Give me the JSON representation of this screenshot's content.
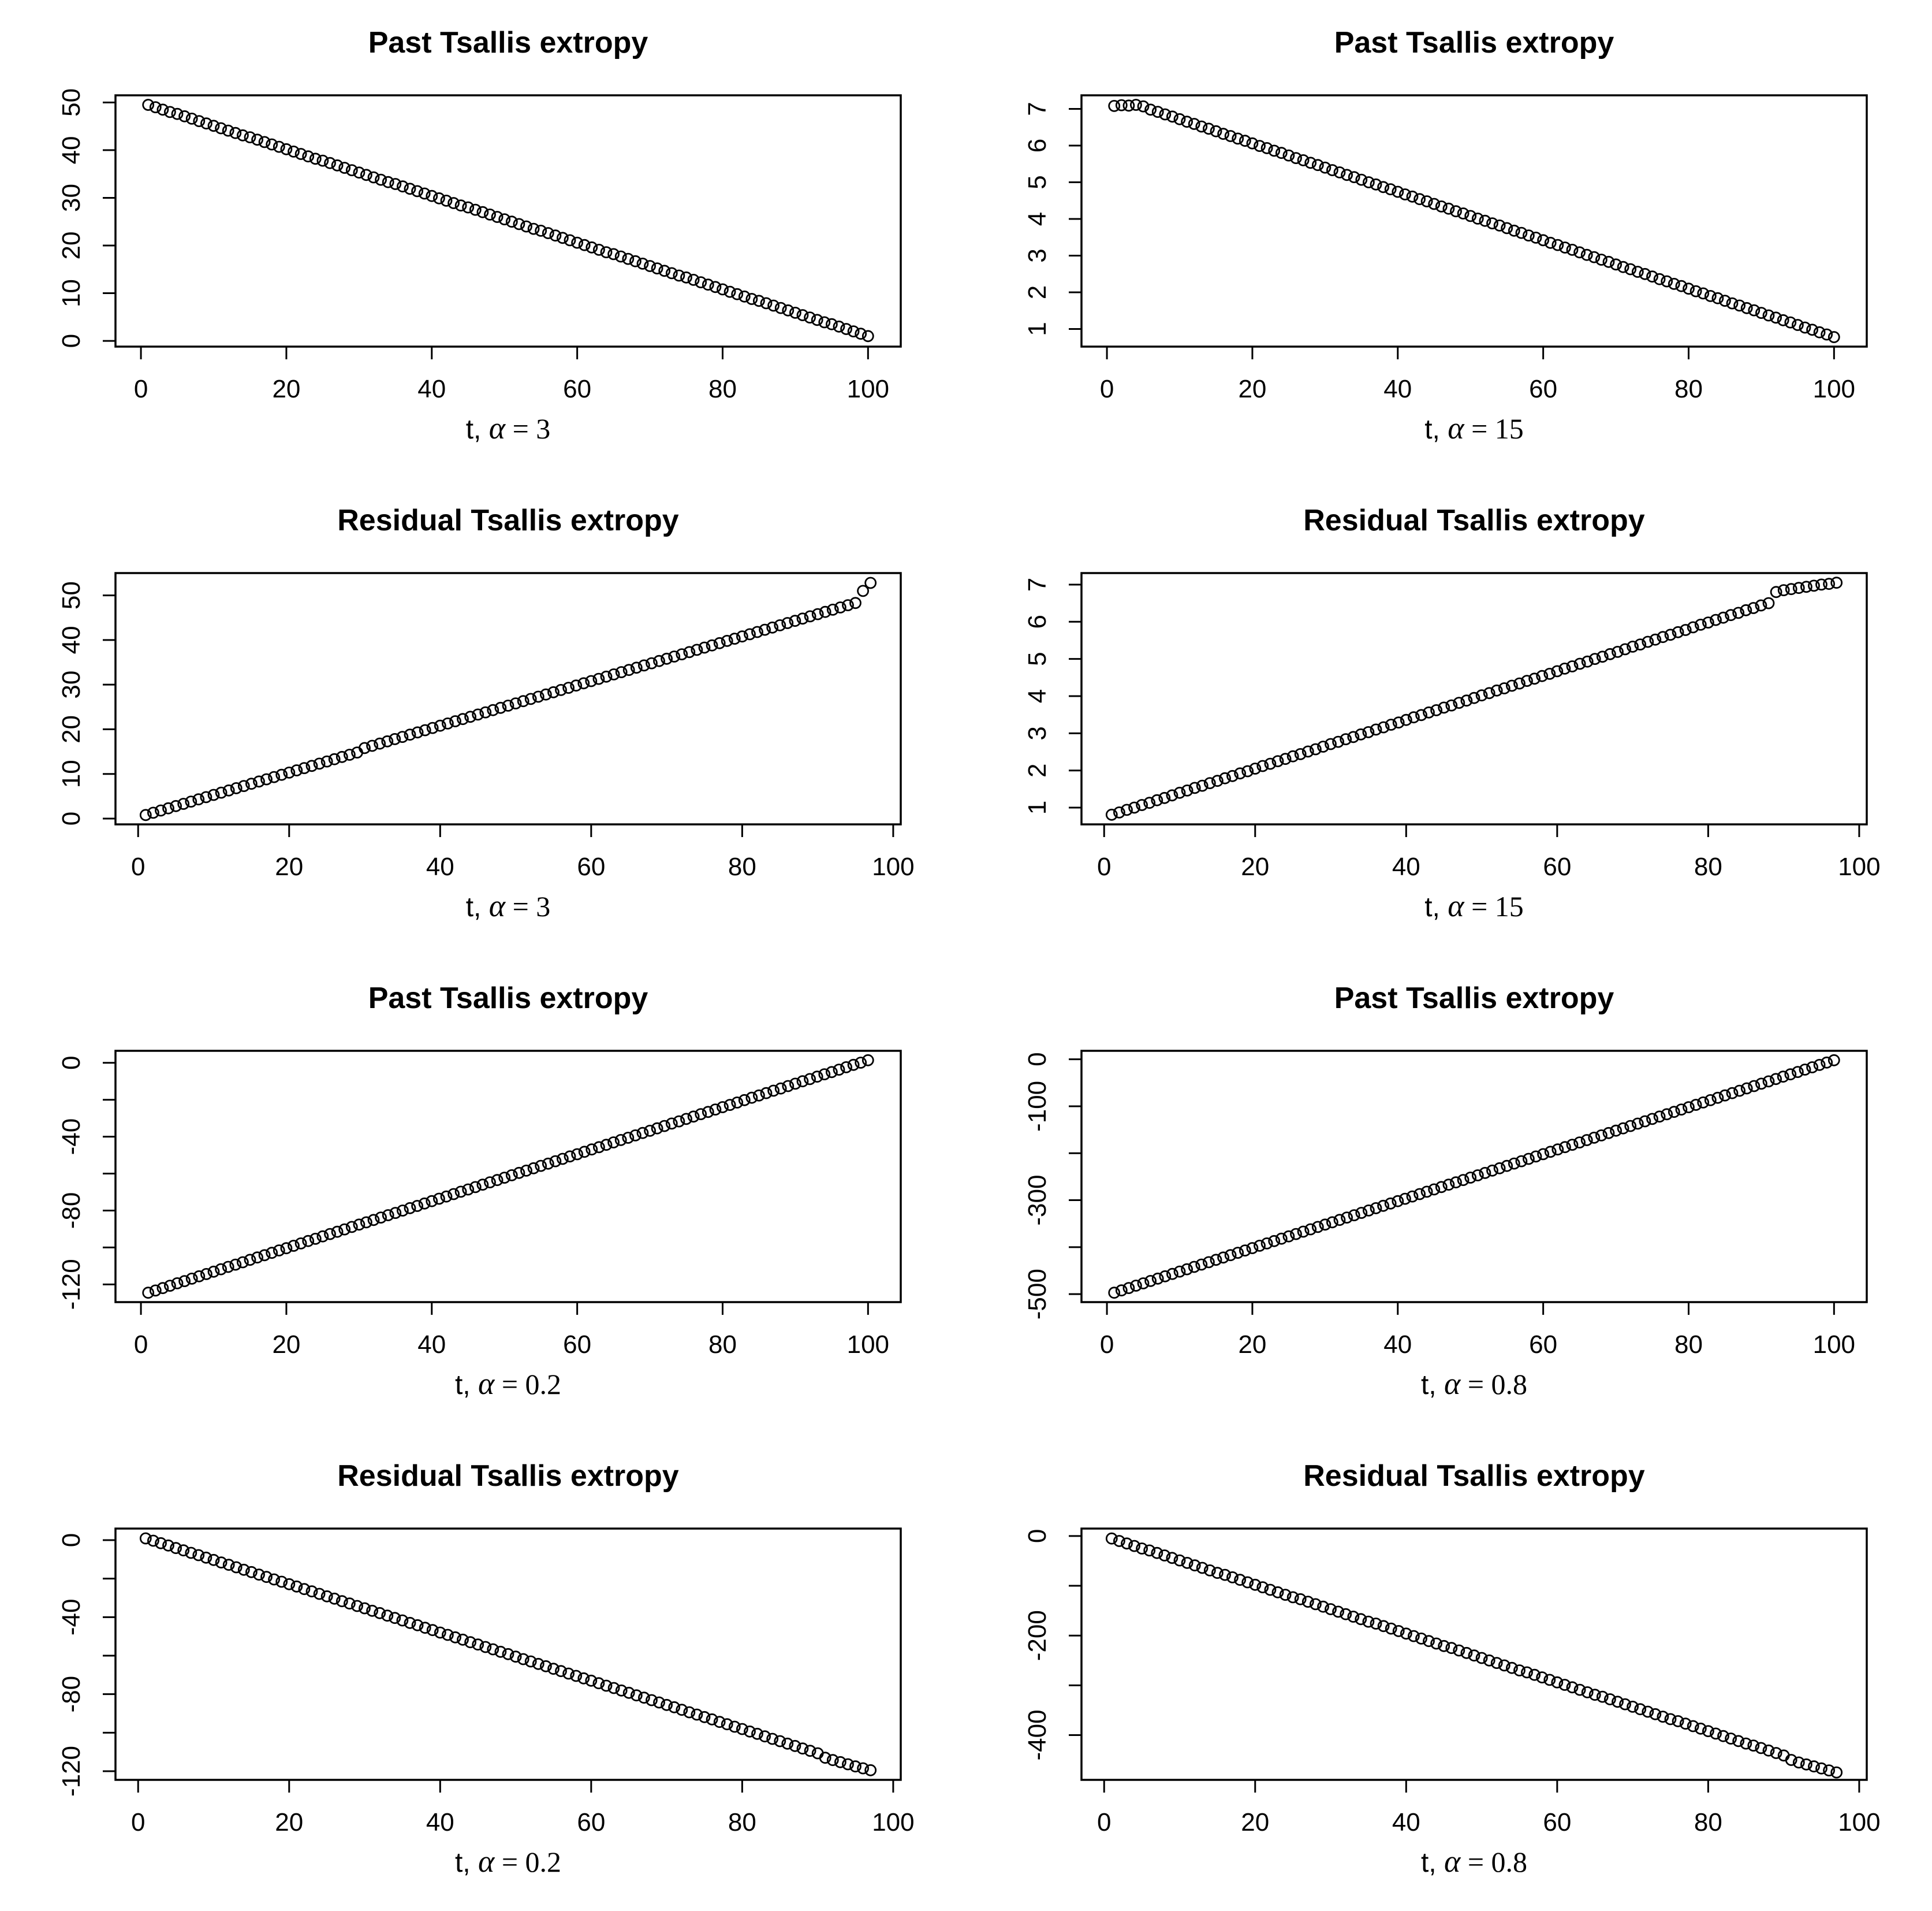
{
  "page": {
    "background": "#ffffff",
    "text_color": "#000000",
    "accent": "#000000"
  },
  "chart_data": [
    {
      "type": "scatter",
      "title": "Past Tsallis extropy",
      "xlabel": "t, α = 3",
      "xlabel_parts": {
        "prefix": "t, ",
        "alpha": "α",
        "suffix": " = 3"
      },
      "xlim": [
        -3.5,
        104.5
      ],
      "ylim": [
        -1.2,
        51.5
      ],
      "x_ticks": [
        0,
        20,
        40,
        60,
        80,
        100
      ],
      "y_tick_values": [
        0,
        10,
        20,
        30,
        40,
        50
      ],
      "y_tick_labels": [
        "0",
        "10",
        "20",
        "30",
        "40",
        "50"
      ],
      "grid": false,
      "legend": null,
      "x_start": 1,
      "x_step": 1,
      "y": [
        49.5,
        49.0,
        48.5,
        48.0,
        47.6,
        47.1,
        46.6,
        46.1,
        45.6,
        45.1,
        44.6,
        44.1,
        43.6,
        43.1,
        42.7,
        42.2,
        41.7,
        41.2,
        40.7,
        40.2,
        39.7,
        39.2,
        38.7,
        38.2,
        37.8,
        37.3,
        36.8,
        36.3,
        35.8,
        35.3,
        34.8,
        34.3,
        33.8,
        33.3,
        32.9,
        32.4,
        31.9,
        31.4,
        30.9,
        30.4,
        29.9,
        29.4,
        28.9,
        28.4,
        28.0,
        27.5,
        27.0,
        26.5,
        26.0,
        25.5,
        25.0,
        24.5,
        24.0,
        23.5,
        23.1,
        22.6,
        22.1,
        21.6,
        21.1,
        20.6,
        20.1,
        19.6,
        19.1,
        18.6,
        18.2,
        17.7,
        17.2,
        16.7,
        16.2,
        15.7,
        15.2,
        14.7,
        14.2,
        13.7,
        13.3,
        12.8,
        12.3,
        11.8,
        11.3,
        10.8,
        10.3,
        9.8,
        9.3,
        8.8,
        8.4,
        7.9,
        7.4,
        6.9,
        6.4,
        5.9,
        5.4,
        4.9,
        4.4,
        3.9,
        3.5,
        3.0,
        2.5,
        2.0,
        1.5,
        1.0
      ]
    },
    {
      "type": "scatter",
      "title": "Past Tsallis extropy",
      "xlabel": "t, α = 15",
      "xlabel_parts": {
        "prefix": "t, ",
        "alpha": "α",
        "suffix": " = 15"
      },
      "xlim": [
        -3.5,
        104.5
      ],
      "ylim": [
        0.52,
        7.37
      ],
      "x_ticks": [
        0,
        20,
        40,
        60,
        80,
        100
      ],
      "y_tick_values": [
        1,
        2,
        3,
        4,
        5,
        6,
        7
      ],
      "y_tick_labels": [
        "1",
        "2",
        "3",
        "4",
        "5",
        "6",
        "7"
      ],
      "grid": false,
      "legend": null,
      "x_start": 1,
      "x_step": 1,
      "y": [
        7.08,
        7.1,
        7.09,
        7.11,
        7.07,
        6.98,
        6.92,
        6.85,
        6.79,
        6.72,
        6.65,
        6.59,
        6.52,
        6.46,
        6.39,
        6.32,
        6.26,
        6.19,
        6.13,
        6.06,
        5.99,
        5.93,
        5.86,
        5.8,
        5.73,
        5.66,
        5.6,
        5.53,
        5.47,
        5.4,
        5.33,
        5.27,
        5.2,
        5.14,
        5.07,
        5.0,
        4.94,
        4.87,
        4.81,
        4.74,
        4.67,
        4.61,
        4.54,
        4.48,
        4.41,
        4.34,
        4.28,
        4.21,
        4.15,
        4.08,
        4.01,
        3.95,
        3.88,
        3.82,
        3.75,
        3.68,
        3.62,
        3.55,
        3.49,
        3.42,
        3.35,
        3.29,
        3.22,
        3.16,
        3.09,
        3.02,
        2.96,
        2.89,
        2.83,
        2.76,
        2.69,
        2.63,
        2.56,
        2.5,
        2.43,
        2.36,
        2.3,
        2.23,
        2.17,
        2.1,
        2.03,
        1.97,
        1.9,
        1.84,
        1.77,
        1.7,
        1.64,
        1.57,
        1.51,
        1.44,
        1.37,
        1.31,
        1.24,
        1.18,
        1.11,
        1.04,
        0.98,
        0.91,
        0.85,
        0.78
      ]
    },
    {
      "type": "scatter",
      "title": "Residual Tsallis extropy",
      "xlabel": "t, α = 3",
      "xlabel_parts": {
        "prefix": "t, ",
        "alpha": "α",
        "suffix": " = 3"
      },
      "xlim": [
        -3,
        101
      ],
      "ylim": [
        -1.3,
        55.0
      ],
      "x_ticks": [
        0,
        20,
        40,
        60,
        80,
        100
      ],
      "y_tick_values": [
        0,
        10,
        20,
        30,
        40,
        50
      ],
      "y_tick_labels": [
        "0",
        "10",
        "20",
        "30",
        "40",
        "50"
      ],
      "grid": false,
      "legend": null,
      "x_start": 1,
      "x_step": 1,
      "y": [
        0.8,
        1.3,
        1.8,
        2.3,
        2.8,
        3.3,
        3.8,
        4.3,
        4.8,
        5.3,
        5.8,
        6.3,
        6.8,
        7.3,
        7.8,
        8.3,
        8.8,
        9.3,
        9.8,
        10.3,
        10.8,
        11.3,
        11.8,
        12.3,
        12.8,
        13.3,
        13.8,
        14.3,
        14.8,
        15.8,
        16.3,
        16.8,
        17.3,
        17.8,
        18.3,
        18.8,
        19.3,
        19.8,
        20.3,
        20.8,
        21.3,
        21.8,
        22.3,
        22.8,
        23.3,
        23.8,
        24.3,
        24.8,
        25.3,
        25.8,
        26.3,
        26.8,
        27.3,
        27.8,
        28.3,
        28.8,
        29.3,
        29.8,
        30.3,
        30.8,
        31.3,
        31.8,
        32.3,
        32.8,
        33.3,
        33.8,
        34.3,
        34.8,
        35.3,
        35.8,
        36.3,
        36.8,
        37.3,
        37.8,
        38.3,
        38.8,
        39.3,
        39.8,
        40.3,
        40.8,
        41.3,
        41.8,
        42.3,
        42.8,
        43.3,
        43.8,
        44.3,
        44.8,
        45.3,
        45.8,
        46.3,
        46.8,
        47.3,
        47.8,
        48.3,
        51.0,
        52.8
      ]
    },
    {
      "type": "scatter",
      "title": "Residual Tsallis extropy",
      "xlabel": "t, α = 15",
      "xlabel_parts": {
        "prefix": "t, ",
        "alpha": "α",
        "suffix": " = 15"
      },
      "xlim": [
        -3,
        101
      ],
      "ylim": [
        0.55,
        7.31
      ],
      "x_ticks": [
        0,
        20,
        40,
        60,
        80,
        100
      ],
      "y_tick_values": [
        1,
        2,
        3,
        4,
        5,
        6,
        7
      ],
      "y_tick_labels": [
        "1",
        "2",
        "3",
        "4",
        "5",
        "6",
        "7"
      ],
      "grid": false,
      "legend": null,
      "x_start": 1,
      "x_step": 1,
      "y": [
        0.81,
        0.87,
        0.94,
        1.0,
        1.07,
        1.13,
        1.2,
        1.26,
        1.33,
        1.4,
        1.46,
        1.53,
        1.59,
        1.66,
        1.72,
        1.79,
        1.85,
        1.92,
        1.98,
        2.05,
        2.12,
        2.18,
        2.25,
        2.31,
        2.38,
        2.44,
        2.51,
        2.57,
        2.64,
        2.71,
        2.77,
        2.84,
        2.9,
        2.97,
        3.03,
        3.1,
        3.16,
        3.23,
        3.29,
        3.36,
        3.43,
        3.49,
        3.56,
        3.62,
        3.69,
        3.75,
        3.82,
        3.88,
        3.95,
        4.02,
        4.08,
        4.15,
        4.21,
        4.28,
        4.34,
        4.41,
        4.47,
        4.54,
        4.6,
        4.67,
        4.74,
        4.8,
        4.87,
        4.93,
        5.0,
        5.06,
        5.13,
        5.19,
        5.26,
        5.33,
        5.39,
        5.46,
        5.52,
        5.59,
        5.65,
        5.72,
        5.78,
        5.85,
        5.92,
        5.98,
        6.05,
        6.11,
        6.18,
        6.24,
        6.31,
        6.37,
        6.44,
        6.5,
        6.8,
        6.85,
        6.88,
        6.91,
        6.94,
        6.97,
        7.0,
        7.02,
        7.05
      ]
    },
    {
      "type": "scatter",
      "title": "Past Tsallis extropy",
      "xlabel": "t, α = 0.2",
      "xlabel_parts": {
        "prefix": "t, ",
        "alpha": "α",
        "suffix": " = 0.2"
      },
      "xlim": [
        -3.5,
        104.5
      ],
      "ylim": [
        -129.6,
        6.5
      ],
      "x_ticks": [
        0,
        20,
        40,
        60,
        80,
        100
      ],
      "y_tick_values": [
        -120,
        -100,
        -80,
        -60,
        -40,
        -20,
        0
      ],
      "y_tick_labels": [
        "-120",
        "",
        "-80",
        "",
        "-40",
        "",
        "0"
      ],
      "grid": false,
      "legend": null,
      "x_start": 1,
      "x_step": 1,
      "y": [
        -124.5,
        -123.3,
        -122.0,
        -120.7,
        -119.4,
        -118.2,
        -116.9,
        -115.6,
        -114.4,
        -113.1,
        -111.8,
        -110.5,
        -109.3,
        -108.0,
        -106.7,
        -105.4,
        -104.2,
        -102.9,
        -101.6,
        -100.4,
        -99.1,
        -97.8,
        -96.5,
        -95.3,
        -94.0,
        -92.7,
        -91.5,
        -90.2,
        -88.9,
        -87.6,
        -86.4,
        -85.1,
        -83.8,
        -82.5,
        -81.3,
        -80.0,
        -78.7,
        -77.5,
        -76.2,
        -74.9,
        -73.6,
        -72.4,
        -71.1,
        -69.8,
        -68.6,
        -67.3,
        -66.0,
        -64.7,
        -63.5,
        -62.2,
        -60.9,
        -59.6,
        -58.4,
        -57.1,
        -55.8,
        -54.6,
        -53.3,
        -52.0,
        -50.7,
        -49.5,
        -48.2,
        -46.9,
        -45.7,
        -44.4,
        -43.1,
        -41.8,
        -40.6,
        -39.3,
        -38.0,
        -36.8,
        -35.5,
        -34.2,
        -32.9,
        -31.7,
        -30.4,
        -29.1,
        -27.8,
        -26.6,
        -25.3,
        -24.0,
        -22.8,
        -21.5,
        -20.2,
        -18.9,
        -17.7,
        -16.4,
        -15.1,
        -13.9,
        -12.6,
        -11.3,
        -10.0,
        -8.8,
        -7.5,
        -6.2,
        -5.0,
        -3.7,
        -2.4,
        -1.1,
        0.1,
        1.4
      ]
    },
    {
      "type": "scatter",
      "title": "Past Tsallis extropy",
      "xlabel": "t, α = 0.8",
      "xlabel_parts": {
        "prefix": "t, ",
        "alpha": "α",
        "suffix": " = 0.8"
      },
      "xlim": [
        -3.5,
        104.5
      ],
      "ylim": [
        -517,
        18
      ],
      "x_ticks": [
        0,
        20,
        40,
        60,
        80,
        100
      ],
      "y_tick_values": [
        -500,
        -400,
        -300,
        -200,
        -100,
        0
      ],
      "y_tick_labels": [
        "-500",
        "",
        "-300",
        "",
        "-100",
        "0"
      ],
      "grid": false,
      "legend": null,
      "x_start": 1,
      "x_step": 1,
      "y": [
        -497,
        -492,
        -487,
        -482,
        -477,
        -472,
        -467,
        -462,
        -457,
        -452,
        -447,
        -442,
        -437,
        -432,
        -427,
        -422,
        -417,
        -412,
        -407,
        -402,
        -397,
        -392,
        -387,
        -382,
        -377,
        -372,
        -367,
        -362,
        -357,
        -352,
        -347,
        -342,
        -337,
        -332,
        -327,
        -322,
        -317,
        -312,
        -307,
        -302,
        -297,
        -292,
        -287,
        -282,
        -277,
        -272,
        -267,
        -262,
        -257,
        -252,
        -247,
        -242,
        -237,
        -232,
        -227,
        -222,
        -217,
        -212,
        -207,
        -202,
        -197,
        -192,
        -187,
        -182,
        -177,
        -172,
        -167,
        -162,
        -157,
        -152,
        -147,
        -142,
        -137,
        -132,
        -127,
        -122,
        -117,
        -112,
        -107,
        -102,
        -97,
        -92,
        -87,
        -82,
        -77,
        -72,
        -67,
        -62,
        -57,
        -52,
        -47,
        -42,
        -37,
        -32,
        -27,
        -22,
        -17,
        -12,
        -7,
        -2
      ]
    },
    {
      "type": "scatter",
      "title": "Residual Tsallis extropy",
      "xlabel": "t, α = 0.2",
      "xlabel_parts": {
        "prefix": "t, ",
        "alpha": "α",
        "suffix": " = 0.2"
      },
      "xlim": [
        -3,
        101
      ],
      "ylim": [
        -124.5,
        6.0
      ],
      "x_ticks": [
        0,
        20,
        40,
        60,
        80,
        100
      ],
      "y_tick_values": [
        -120,
        -100,
        -80,
        -60,
        -40,
        -20,
        0
      ],
      "y_tick_labels": [
        "-120",
        "",
        "-80",
        "",
        "-40",
        "",
        "0"
      ],
      "grid": false,
      "legend": null,
      "x_start": 1,
      "x_step": 1,
      "y": [
        0.9,
        -0.3,
        -1.6,
        -2.8,
        -4.1,
        -5.3,
        -6.6,
        -7.8,
        -9.1,
        -10.3,
        -11.6,
        -12.8,
        -14.1,
        -15.4,
        -16.6,
        -17.9,
        -19.1,
        -20.4,
        -21.6,
        -22.9,
        -24.1,
        -25.4,
        -26.6,
        -27.9,
        -29.2,
        -30.4,
        -31.7,
        -32.9,
        -34.2,
        -35.4,
        -36.7,
        -37.9,
        -39.2,
        -40.4,
        -41.7,
        -43.0,
        -44.2,
        -45.5,
        -46.7,
        -48.0,
        -49.2,
        -50.5,
        -51.7,
        -53.0,
        -54.2,
        -55.5,
        -56.7,
        -58.0,
        -59.2,
        -60.5,
        -61.8,
        -63.0,
        -64.3,
        -65.5,
        -66.8,
        -68.0,
        -69.3,
        -70.5,
        -71.8,
        -73.0,
        -74.3,
        -75.6,
        -76.8,
        -78.1,
        -79.3,
        -80.6,
        -81.8,
        -83.1,
        -84.3,
        -85.6,
        -86.8,
        -88.1,
        -89.4,
        -90.6,
        -91.9,
        -93.1,
        -94.4,
        -95.6,
        -96.9,
        -98.1,
        -99.4,
        -100.6,
        -101.9,
        -103.2,
        -104.4,
        -105.7,
        -106.9,
        -108.2,
        -109.4,
        -110.7,
        -113.0,
        -114.2,
        -115.3,
        -116.4,
        -117.5,
        -118.5,
        -119.5
      ]
    },
    {
      "type": "scatter",
      "title": "Residual Tsallis extropy",
      "xlabel": "t, α = 0.8",
      "xlabel_parts": {
        "prefix": "t, ",
        "alpha": "α",
        "suffix": " = 0.8"
      },
      "xlim": [
        -3,
        101
      ],
      "ylim": [
        -490,
        15
      ],
      "x_ticks": [
        0,
        20,
        40,
        60,
        80,
        100
      ],
      "y_tick_values": [
        -400,
        -300,
        -200,
        -100,
        0
      ],
      "y_tick_labels": [
        "-400",
        "",
        "-200",
        "",
        "0"
      ],
      "grid": false,
      "legend": null,
      "x_start": 1,
      "x_step": 1,
      "y": [
        -5,
        -10,
        -15,
        -20,
        -25,
        -29,
        -34,
        -39,
        -44,
        -49,
        -54,
        -59,
        -64,
        -69,
        -74,
        -78,
        -83,
        -88,
        -93,
        -98,
        -103,
        -108,
        -113,
        -118,
        -123,
        -127,
        -132,
        -137,
        -142,
        -147,
        -152,
        -157,
        -162,
        -167,
        -172,
        -176,
        -181,
        -186,
        -191,
        -196,
        -201,
        -206,
        -211,
        -216,
        -221,
        -225,
        -230,
        -235,
        -240,
        -245,
        -250,
        -255,
        -260,
        -265,
        -270,
        -274,
        -279,
        -284,
        -289,
        -294,
        -299,
        -304,
        -309,
        -314,
        -319,
        -323,
        -328,
        -333,
        -338,
        -343,
        -348,
        -353,
        -358,
        -363,
        -368,
        -372,
        -377,
        -382,
        -387,
        -392,
        -397,
        -402,
        -407,
        -412,
        -417,
        -421,
        -426,
        -431,
        -436,
        -441,
        -450,
        -455,
        -459,
        -463,
        -467,
        -471,
        -475
      ]
    }
  ]
}
